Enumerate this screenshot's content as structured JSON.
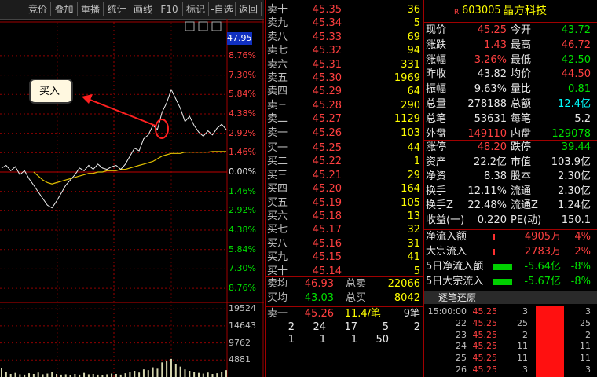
{
  "toolbar": [
    "竞价",
    "叠加",
    "重播",
    "统计",
    "画线",
    "F10",
    "标记",
    "-自选",
    "返回"
  ],
  "intraday": {
    "type": "line",
    "price_high": "47.95",
    "annotation": "买入",
    "ylim": [
      -10.59,
      10.59
    ],
    "yticks": [
      {
        "value": 8.76,
        "label": "8.76%"
      },
      {
        "value": 7.3,
        "label": "7.30%"
      },
      {
        "value": 5.84,
        "label": "5.84%"
      },
      {
        "value": 4.38,
        "label": "4.38%"
      },
      {
        "value": 2.92,
        "label": "2.92%"
      },
      {
        "value": 1.46,
        "label": "1.46%"
      },
      {
        "value": 0,
        "label": "0.00%"
      },
      {
        "value": -1.46,
        "label": "1.46%"
      },
      {
        "value": -2.92,
        "label": "2.92%"
      },
      {
        "value": -4.38,
        "label": "4.38%"
      },
      {
        "value": -5.84,
        "label": "5.84%"
      },
      {
        "value": -7.3,
        "label": "7.30%"
      },
      {
        "value": -8.76,
        "label": "8.76%"
      }
    ],
    "price": [
      0.3,
      0.5,
      0.1,
      0.4,
      -0.2,
      0.1,
      -0.5,
      -1.0,
      -1.5,
      -2.0,
      -2.5,
      -2.7,
      -2.2,
      -1.6,
      -1.0,
      -0.6,
      -0.2,
      0.3,
      0.1,
      0.5,
      0.2,
      0.6,
      0.3,
      0.2,
      0.4,
      0.5,
      0.2,
      0.6,
      1.2,
      1.8,
      1.6,
      2.5,
      2.8,
      3.5,
      3.2,
      4.5,
      5.2,
      6.2,
      5.5,
      4.8,
      3.8,
      4.2,
      3.5,
      3.0,
      2.7,
      3.1,
      2.8,
      3.3,
      3.6,
      3.2
    ],
    "avg": [
      null,
      null,
      null,
      null,
      null,
      null,
      null,
      0.0,
      -0.3,
      -0.6,
      -0.8,
      -0.9,
      -0.8,
      -0.7,
      -0.6,
      -0.5,
      -0.4,
      -0.3,
      -0.2,
      -0.1,
      -0.1,
      0.0,
      0.0,
      0.1,
      0.1,
      0.1,
      0.2,
      0.2,
      0.3,
      0.4,
      0.5,
      0.6,
      0.7,
      0.8,
      1.0,
      1.2,
      1.3,
      1.4,
      1.4,
      1.4,
      1.5,
      1.5,
      1.5,
      1.5,
      1.5,
      1.5,
      1.55,
      1.55,
      1.55,
      1.55
    ],
    "vol_ylim": [
      0,
      21370
    ],
    "vol_ticks": [
      19524,
      14643,
      9762,
      4881
    ],
    "volume": [
      2600,
      1500,
      900,
      1200,
      800,
      700,
      1100,
      900,
      1300,
      800,
      1000,
      1400,
      900,
      700,
      800,
      600,
      900,
      700,
      1200,
      800,
      900,
      700,
      600,
      800,
      1000,
      900,
      700,
      1100,
      1500,
      1800,
      1300,
      2200,
      2000,
      2800,
      2400,
      4200,
      4600,
      5200,
      3600,
      3000,
      2200,
      1800,
      1400,
      1200,
      1000,
      1300,
      900,
      1100,
      1400,
      2000
    ]
  },
  "order_book": {
    "asks": [
      {
        "label": "卖十",
        "price": "45.35",
        "volume": "36"
      },
      {
        "label": "卖九",
        "price": "45.34",
        "volume": "5"
      },
      {
        "label": "卖八",
        "price": "45.33",
        "volume": "69"
      },
      {
        "label": "卖七",
        "price": "45.32",
        "volume": "94"
      },
      {
        "label": "卖六",
        "price": "45.31",
        "volume": "331"
      },
      {
        "label": "卖五",
        "price": "45.30",
        "volume": "1969"
      },
      {
        "label": "卖四",
        "price": "45.29",
        "volume": "64"
      },
      {
        "label": "卖三",
        "price": "45.28",
        "volume": "290"
      },
      {
        "label": "卖二",
        "price": "45.27",
        "volume": "1129"
      },
      {
        "label": "卖一",
        "price": "45.26",
        "volume": "103"
      }
    ],
    "bids": [
      {
        "label": "买一",
        "price": "45.25",
        "volume": "44"
      },
      {
        "label": "买二",
        "price": "45.22",
        "volume": "1"
      },
      {
        "label": "买三",
        "price": "45.21",
        "volume": "29"
      },
      {
        "label": "买四",
        "price": "45.20",
        "volume": "164"
      },
      {
        "label": "买五",
        "price": "45.19",
        "volume": "105"
      },
      {
        "label": "买六",
        "price": "45.18",
        "volume": "13"
      },
      {
        "label": "买七",
        "price": "45.17",
        "volume": "32"
      },
      {
        "label": "买八",
        "price": "45.16",
        "volume": "31"
      },
      {
        "label": "买九",
        "price": "45.15",
        "volume": "41"
      },
      {
        "label": "买十",
        "price": "45.14",
        "volume": "5"
      }
    ],
    "summary": [
      [
        "卖均",
        "46.93",
        "总卖",
        "22066"
      ],
      [
        "买均",
        "43.03",
        "总买",
        "8042"
      ]
    ],
    "best_ask": [
      "卖一",
      "45.26",
      "11.4/笔",
      "9笔"
    ],
    "queue": [
      [
        "2",
        "24",
        "17",
        "5",
        "2"
      ],
      [
        "1",
        "1",
        "1",
        "50"
      ]
    ]
  },
  "quote": {
    "flag": "R",
    "code": "603005",
    "name": "晶方科技",
    "rows": [
      [
        "现价",
        "45.25",
        "今开",
        "43.72"
      ],
      [
        "涨跌",
        "1.43",
        "最高",
        "46.72"
      ],
      [
        "涨幅",
        "3.26%",
        "最低",
        "42.50"
      ],
      [
        "昨收",
        "43.82",
        "均价",
        "44.50"
      ],
      [
        "振幅",
        "9.63%",
        "量比",
        "0.81"
      ],
      [
        "总量",
        "278188",
        "总额",
        "12.4亿"
      ],
      [
        "总笔",
        "53631",
        "每笔",
        "5.2"
      ],
      [
        "外盘",
        "149110",
        "内盘",
        "129078"
      ]
    ],
    "finance": [
      [
        "涨停",
        "48.20",
        "跌停",
        "39.44"
      ],
      [
        "资产",
        "22.2亿",
        "市值",
        "103.9亿"
      ],
      [
        "净资",
        "8.38",
        "股本",
        "2.30亿"
      ],
      [
        "换手",
        "12.11%",
        "流通",
        "2.30亿"
      ],
      [
        "换手Z",
        "22.48%",
        "流通Z",
        "1.24亿"
      ],
      [
        "收益(一)",
        "0.220",
        "PE(动)",
        "150.1"
      ]
    ],
    "flows": [
      [
        "净流入额",
        "4905万",
        "4%"
      ],
      [
        "大宗流入",
        "2783万",
        "2%"
      ],
      [
        "5日净流入额",
        "-5.64亿",
        "-8%"
      ],
      [
        "5日大宗流入",
        "-5.67亿",
        "-8%"
      ]
    ],
    "ticks_title": "逐笔还原",
    "ticks": [
      [
        "15:00:00",
        "45.25",
        "3",
        "3"
      ],
      [
        "22",
        "45.25",
        "25",
        "25"
      ],
      [
        "23",
        "45.25",
        "2",
        "2"
      ],
      [
        "24",
        "45.25",
        "11",
        "11"
      ],
      [
        "25",
        "45.25",
        "11",
        "11"
      ],
      [
        "26",
        "45.25",
        "3",
        "3"
      ]
    ]
  }
}
